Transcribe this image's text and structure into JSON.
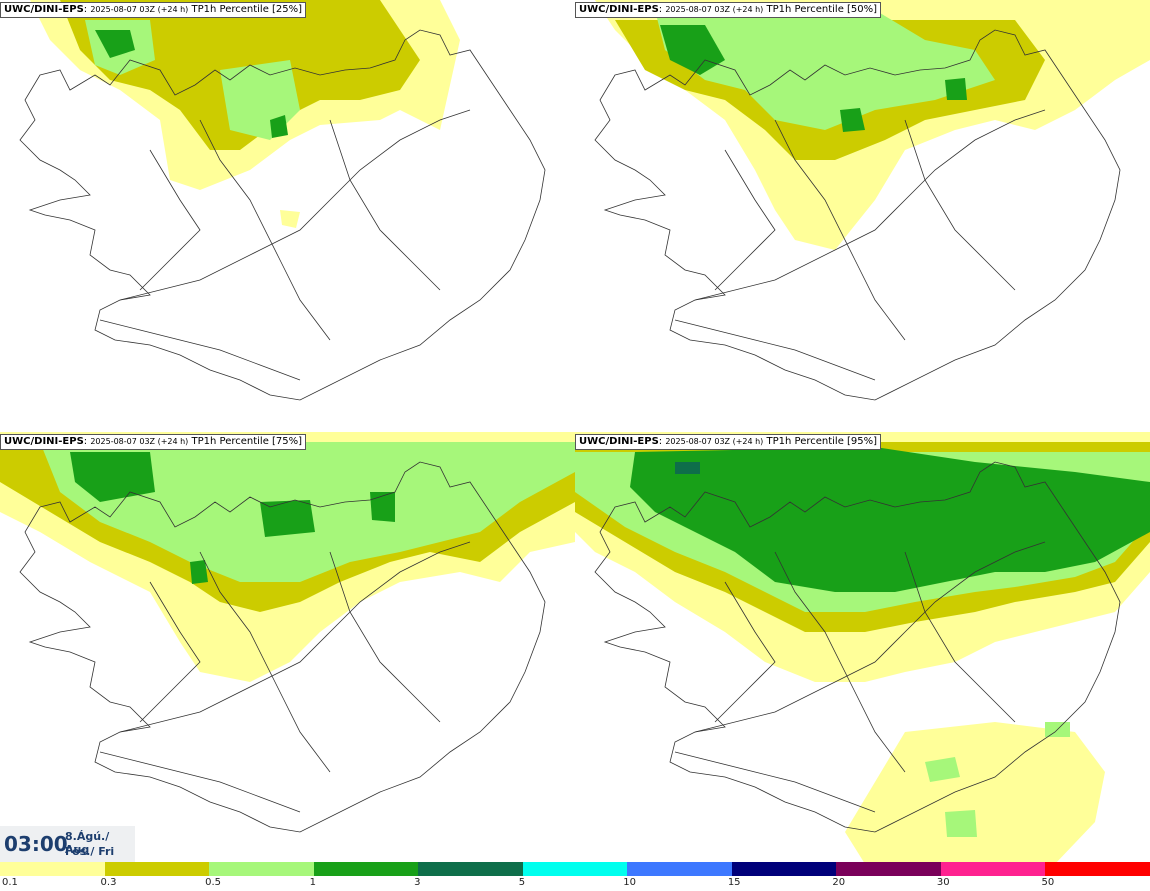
{
  "panels": [
    {
      "model": "UWC/DINI-EPS",
      "run": "2025-08-07 03Z (+24 h)",
      "field": "TP1h Percentile [25%]"
    },
    {
      "model": "UWC/DINI-EPS",
      "run": "2025-08-07 03Z (+24 h)",
      "field": "TP1h Percentile [50%]"
    },
    {
      "model": "UWC/DINI-EPS",
      "run": "2025-08-07 03Z (+24 h)",
      "field": "TP1h Percentile [75%]"
    },
    {
      "model": "UWC/DINI-EPS",
      "run": "2025-08-07 03Z (+24 h)",
      "field": "TP1h Percentile [95%]"
    }
  ],
  "valid_time": {
    "time": "03:00",
    "date": "8.Ágú./ Aug",
    "day": "Fös./ Fri"
  },
  "legend": {
    "labels": [
      "0.1",
      "0.3",
      "0.5",
      "1",
      "3",
      "5",
      "10",
      "15",
      "20",
      "30",
      "50"
    ],
    "colors": [
      "#ffff99",
      "#cccc00",
      "#a6f77a",
      "#18a018",
      "#0e6e4a",
      "#00ffee",
      "#3d78ff",
      "#00007a",
      "#7a005a",
      "#ff2290",
      "#ff0000"
    ]
  }
}
